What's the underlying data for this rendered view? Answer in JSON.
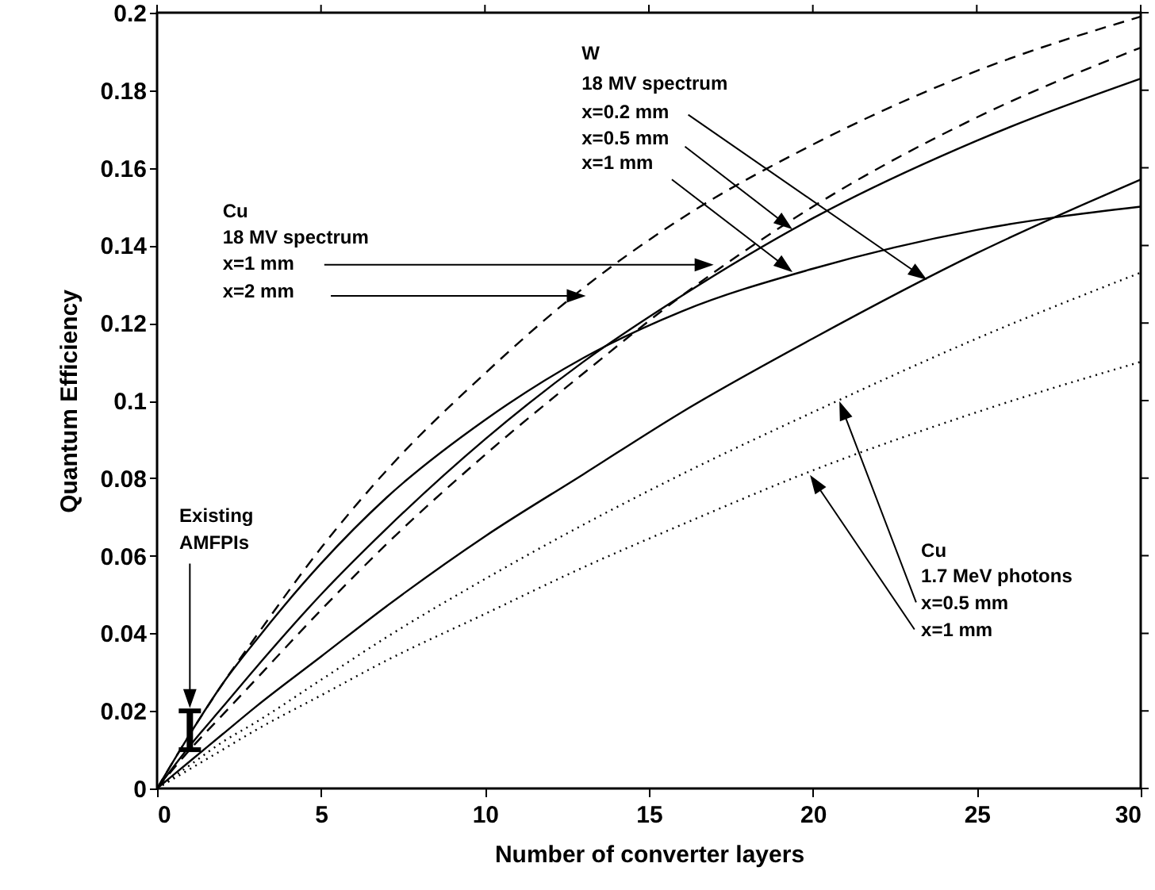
{
  "chart_data": {
    "type": "line",
    "xlabel": "Number of converter layers",
    "ylabel": "Quantum Efficiency",
    "xlim": [
      0,
      30
    ],
    "ylim": [
      0,
      0.2
    ],
    "xticks": [
      0,
      5,
      10,
      15,
      20,
      25,
      30
    ],
    "yticks": [
      0,
      0.02,
      0.04,
      0.06,
      0.08,
      0.1,
      0.12,
      0.14,
      0.16,
      0.18,
      0.2
    ],
    "x": [
      0,
      1,
      2,
      3,
      5,
      7,
      10,
      13,
      16,
      20,
      25,
      30
    ],
    "series": [
      {
        "color": "#000000",
        "line_style": "solid",
        "values": [
          0,
          0.011,
          0.021,
          0.031,
          0.05,
          0.067,
          0.09,
          0.11,
          0.127,
          0.147,
          0.167,
          0.183
        ]
      },
      {
        "color": "#000000",
        "line_style": "solid",
        "values": [
          0,
          0.007,
          0.014,
          0.021,
          0.034,
          0.047,
          0.065,
          0.081,
          0.097,
          0.116,
          0.138,
          0.157
        ]
      },
      {
        "color": "#000000",
        "line_style": "solid",
        "values": [
          0,
          0.014,
          0.027,
          0.038,
          0.058,
          0.075,
          0.095,
          0.111,
          0.123,
          0.134,
          0.144,
          0.15
        ]
      },
      {
        "color": "#000000",
        "line_style": "dashed",
        "values": [
          0,
          0.01,
          0.019,
          0.028,
          0.046,
          0.063,
          0.086,
          0.107,
          0.127,
          0.15,
          0.173,
          0.191
        ]
      },
      {
        "color": "#000000",
        "line_style": "dashed",
        "values": [
          0,
          0.014,
          0.027,
          0.039,
          0.062,
          0.082,
          0.107,
          0.129,
          0.147,
          0.166,
          0.185,
          0.199
        ]
      },
      {
        "color": "#000000",
        "line_style": "dotted",
        "values": [
          0,
          0.006,
          0.012,
          0.017,
          0.028,
          0.039,
          0.054,
          0.068,
          0.081,
          0.097,
          0.116,
          0.133
        ]
      },
      {
        "color": "#000000",
        "line_style": "dotted",
        "values": [
          0,
          0.005,
          0.01,
          0.015,
          0.024,
          0.033,
          0.045,
          0.057,
          0.068,
          0.082,
          0.097,
          0.11
        ]
      },
      {
        "type": "bar",
        "color": "#000000",
        "x": [
          1
        ],
        "base": [
          0.01
        ],
        "values": [
          0.01
        ]
      }
    ],
    "annotations": [
      "W",
      "18 MV spectrum",
      "x=0.2 mm",
      "x=0.5 mm",
      "x=1 mm",
      "Cu",
      "18 MV spectrum",
      "x=1 mm",
      "x=2 mm",
      "Existing",
      "AMFPIs",
      "Cu",
      "1.7 MeV photons",
      "x=0.5 mm",
      "x=1 mm"
    ]
  }
}
